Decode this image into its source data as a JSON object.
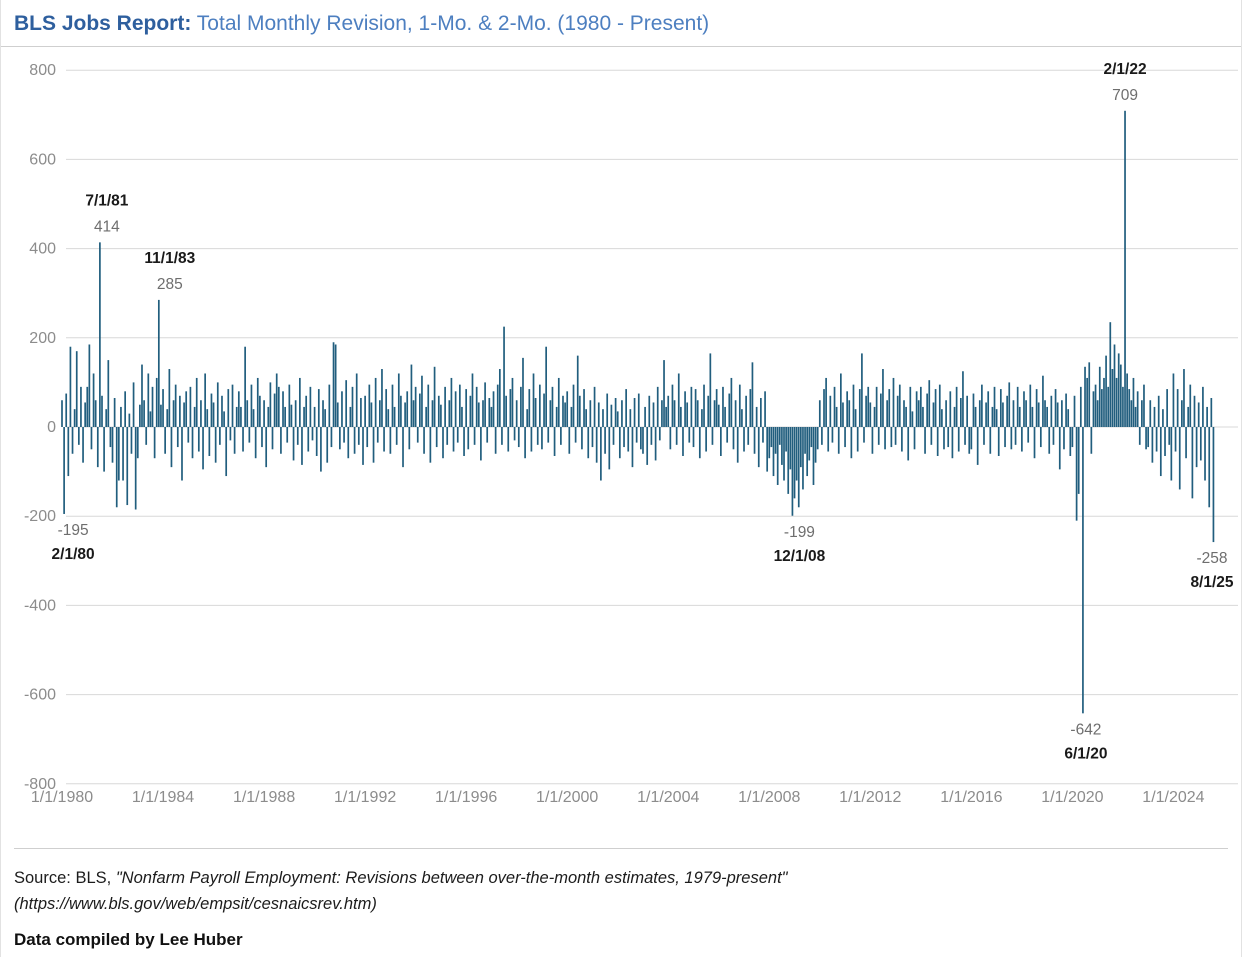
{
  "title": {
    "bold": "BLS Jobs Report:",
    "rest": " Total Monthly Revision, 1-Mo. & 2-Mo. (1980 - Present)"
  },
  "chart_data": {
    "type": "bar",
    "title": "BLS Jobs Report: Total Monthly Revision, 1-Mo. & 2-Mo. (1980 - Present)",
    "xlabel": "",
    "ylabel": "",
    "ylim": [
      -800,
      800
    ],
    "grid": "horizontal",
    "legend": "none",
    "bar_color": "#215e7e",
    "x_start": "1980-01",
    "frequency": "monthly",
    "y_ticks": [
      800,
      600,
      400,
      200,
      0,
      -200,
      -400,
      -600,
      -800
    ],
    "x_tick_labels": [
      "1/1/1980",
      "1/1/1984",
      "1/1/1988",
      "1/1/1992",
      "1/1/1996",
      "1/1/2000",
      "1/1/2004",
      "1/1/2008",
      "1/1/2012",
      "1/1/2016",
      "1/1/2020",
      "1/1/2024"
    ],
    "x_tick_interval_months": 48,
    "values": [
      60,
      -195,
      75,
      -110,
      180,
      -60,
      40,
      170,
      -40,
      90,
      -80,
      55,
      90,
      185,
      -50,
      120,
      60,
      -90,
      414,
      70,
      -100,
      40,
      150,
      -45,
      -80,
      65,
      -180,
      -120,
      45,
      -120,
      80,
      -175,
      30,
      -60,
      100,
      -185,
      -70,
      50,
      140,
      60,
      -40,
      120,
      35,
      90,
      -70,
      110,
      285,
      50,
      85,
      -60,
      40,
      130,
      -90,
      60,
      95,
      -45,
      70,
      -120,
      55,
      80,
      -35,
      90,
      -70,
      45,
      110,
      -55,
      60,
      -95,
      120,
      40,
      -65,
      75,
      55,
      -80,
      100,
      -40,
      70,
      35,
      -110,
      85,
      -30,
      95,
      -60,
      45,
      80,
      45,
      -55,
      180,
      60,
      -35,
      95,
      40,
      -70,
      110,
      70,
      -45,
      60,
      -90,
      45,
      100,
      -50,
      75,
      120,
      90,
      -60,
      80,
      45,
      -35,
      95,
      50,
      -75,
      60,
      -40,
      110,
      -85,
      45,
      70,
      -55,
      90,
      -30,
      45,
      -65,
      85,
      -100,
      60,
      40,
      -80,
      95,
      -45,
      190,
      185,
      55,
      -50,
      80,
      -35,
      105,
      -70,
      45,
      90,
      -60,
      120,
      -40,
      65,
      -85,
      70,
      -45,
      95,
      55,
      -80,
      110,
      -35,
      60,
      130,
      -55,
      85,
      40,
      -60,
      95,
      45,
      -40,
      120,
      70,
      -90,
      55,
      80,
      -50,
      140,
      60,
      90,
      -35,
      75,
      115,
      -60,
      45,
      95,
      -80,
      60,
      135,
      -45,
      70,
      50,
      -70,
      90,
      -40,
      60,
      110,
      -55,
      80,
      -35,
      95,
      45,
      -65,
      85,
      -50,
      70,
      120,
      -40,
      90,
      55,
      -75,
      60,
      100,
      -35,
      65,
      45,
      80,
      -60,
      95,
      130,
      -40,
      225,
      70,
      -55,
      85,
      110,
      -30,
      60,
      -45,
      90,
      155,
      -70,
      40,
      85,
      -55,
      120,
      65,
      -40,
      95,
      -50,
      75,
      180,
      -35,
      60,
      90,
      -65,
      45,
      110,
      -40,
      70,
      55,
      80,
      -60,
      45,
      95,
      -35,
      160,
      70,
      -50,
      85,
      40,
      -70,
      60,
      -45,
      90,
      -80,
      55,
      -120,
      40,
      -60,
      75,
      -95,
      50,
      -40,
      65,
      35,
      -70,
      60,
      -45,
      85,
      -55,
      40,
      -90,
      65,
      -35,
      75,
      -50,
      -60,
      45,
      -85,
      70,
      -40,
      55,
      -75,
      90,
      -30,
      60,
      150,
      45,
      70,
      -50,
      95,
      60,
      -40,
      120,
      45,
      -65,
      80,
      55,
      -35,
      90,
      -45,
      85,
      60,
      -70,
      40,
      95,
      -55,
      70,
      165,
      -40,
      60,
      85,
      50,
      -65,
      90,
      45,
      -35,
      75,
      110,
      -50,
      60,
      -80,
      95,
      40,
      -55,
      70,
      -40,
      85,
      145,
      -60,
      45,
      -90,
      65,
      -35,
      80,
      -100,
      -70,
      -45,
      -110,
      -60,
      -130,
      -40,
      -85,
      -120,
      -55,
      -150,
      -95,
      -199,
      -160,
      -120,
      -180,
      -90,
      -140,
      -60,
      -110,
      -75,
      -45,
      -130,
      -80,
      -50,
      60,
      -40,
      85,
      110,
      -55,
      70,
      -35,
      90,
      45,
      -60,
      120,
      55,
      -45,
      80,
      60,
      -70,
      95,
      40,
      -55,
      85,
      165,
      -35,
      70,
      90,
      55,
      -60,
      45,
      90,
      -40,
      75,
      130,
      -50,
      60,
      85,
      -45,
      110,
      -40,
      70,
      95,
      -55,
      60,
      45,
      -75,
      90,
      35,
      -50,
      80,
      60,
      90,
      45,
      -60,
      75,
      105,
      -40,
      55,
      85,
      -65,
      95,
      40,
      -50,
      60,
      -45,
      80,
      -70,
      45,
      90,
      -55,
      65,
      125,
      -40,
      70,
      -60,
      -50,
      75,
      45,
      -85,
      60,
      95,
      -40,
      55,
      80,
      -60,
      45,
      90,
      40,
      -65,
      85,
      55,
      -45,
      70,
      100,
      -50,
      60,
      -40,
      90,
      45,
      -55,
      80,
      60,
      -35,
      95,
      45,
      -70,
      85,
      55,
      -45,
      115,
      60,
      45,
      -60,
      70,
      -40,
      85,
      55,
      -95,
      60,
      -50,
      75,
      40,
      -65,
      -45,
      70,
      -210,
      -150,
      90,
      -642,
      135,
      110,
      145,
      -60,
      80,
      95,
      60,
      135,
      85,
      110,
      160,
      90,
      235,
      130,
      185,
      110,
      165,
      140,
      90,
      709,
      120,
      85,
      60,
      110,
      45,
      80,
      -40,
      60,
      95,
      -50,
      -45,
      60,
      -80,
      45,
      -55,
      70,
      -110,
      40,
      -65,
      85,
      -40,
      -120,
      120,
      -55,
      85,
      -140,
      60,
      130,
      -70,
      45,
      95,
      -160,
      70,
      -90,
      55,
      -75,
      90,
      -120,
      45,
      -180,
      65,
      -258
    ],
    "annotations": [
      {
        "date": "2/1/80",
        "value": -195,
        "month_index": 1,
        "side": "below",
        "dx": 9
      },
      {
        "date": "7/1/81",
        "value": 414,
        "month_index": 18,
        "side": "above",
        "dx": 7
      },
      {
        "date": "11/1/83",
        "value": 285,
        "month_index": 46,
        "side": "above",
        "dx": 11
      },
      {
        "date": "12/1/08",
        "value": -199,
        "month_index": 347,
        "side": "below",
        "dx": 7
      },
      {
        "date": "6/1/20",
        "value": -642,
        "month_index": 485,
        "side": "below",
        "dx": 3
      },
      {
        "date": "2/1/22",
        "value": 709,
        "month_index": 505,
        "side": "above",
        "dx": 0
      },
      {
        "date": "8/1/25",
        "value": -258,
        "month_index": 547,
        "side": "below",
        "dx": 0
      }
    ]
  },
  "footer": {
    "source_prefix": "Source: BLS, ",
    "source_quote": "\"Nonfarm Payroll Employment: Revisions between over-the-month estimates, 1979-present\"",
    "source_url_line": "(https://www.bls.gov/web/empsit/cesnaicsrev.htm)",
    "compiled": "Data compiled by Lee Huber"
  },
  "colors": {
    "bar": "#215e7e",
    "title_bold": "#2e5f9e",
    "title_rest": "#4d7fc0",
    "gridline": "#d8d8d8",
    "tick_label": "#8c8c8c",
    "annotation_date": "#1a1a1a",
    "annotation_value": "#6e6e6e"
  }
}
